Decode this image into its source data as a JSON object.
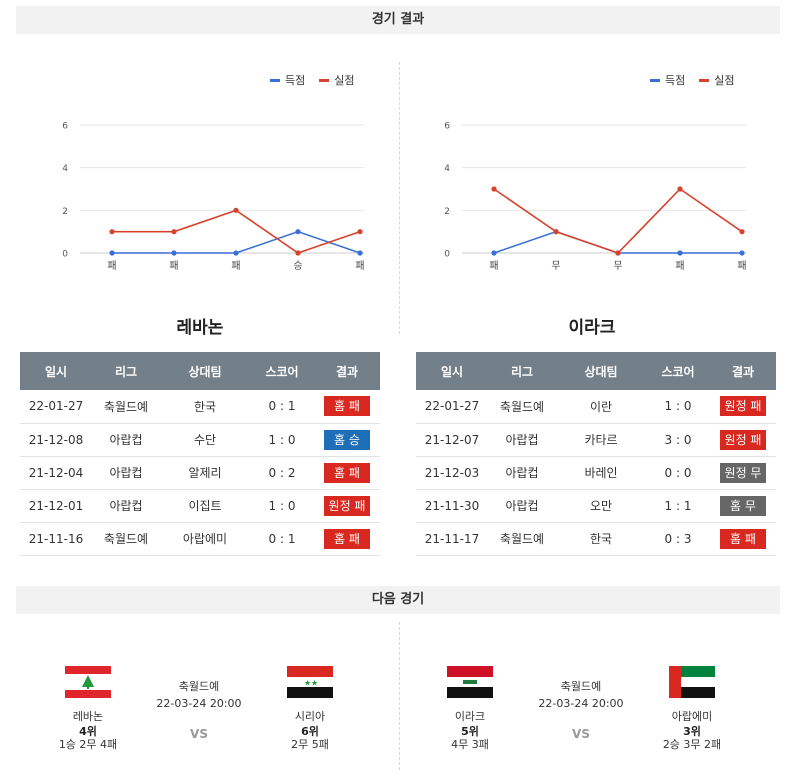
{
  "sections": {
    "results_title": "경기 결과",
    "next_title": "다음 경기"
  },
  "legend": {
    "scored": "득점",
    "conceded": "실점",
    "scored_color": "#3a6fd8",
    "conceded_color": "#d8412c"
  },
  "chart_data": [
    {
      "type": "line",
      "title": "",
      "categories": [
        "패",
        "패",
        "패",
        "승",
        "패"
      ],
      "series": [
        {
          "name": "득점",
          "values": [
            0,
            0,
            0,
            1,
            0
          ],
          "color": "#3a6fd8"
        },
        {
          "name": "실점",
          "values": [
            1,
            1,
            2,
            0,
            1
          ],
          "color": "#d8412c"
        }
      ],
      "yticks": [
        0,
        2,
        4,
        6
      ],
      "ylim": [
        0,
        6
      ],
      "grid": true,
      "legend": "top-right"
    },
    {
      "type": "line",
      "title": "",
      "categories": [
        "패",
        "무",
        "무",
        "패",
        "패"
      ],
      "series": [
        {
          "name": "득점",
          "values": [
            0,
            1,
            0,
            0,
            0
          ],
          "color": "#3a6fd8"
        },
        {
          "name": "실점",
          "values": [
            3,
            1,
            0,
            3,
            1
          ],
          "color": "#d8412c"
        }
      ],
      "yticks": [
        0,
        2,
        4,
        6
      ],
      "ylim": [
        0,
        6
      ],
      "grid": true,
      "legend": "top-right"
    }
  ],
  "teams": {
    "left": "레바논",
    "right": "이라크"
  },
  "table_headers": [
    "일시",
    "리그",
    "상대팀",
    "스코어",
    "결과"
  ],
  "badge_colors": {
    "loss": "#d9281f",
    "win": "#1f6fb8",
    "draw": "#666666"
  },
  "left_results": [
    {
      "date": "22-01-27",
      "league": "축월드예",
      "opponent": "한국",
      "score": "0 : 1",
      "result": "홈 패",
      "kind": "loss"
    },
    {
      "date": "21-12-08",
      "league": "아랍컵",
      "opponent": "수단",
      "score": "1 : 0",
      "result": "홈 승",
      "kind": "win"
    },
    {
      "date": "21-12-04",
      "league": "아랍컵",
      "opponent": "알제리",
      "score": "0 : 2",
      "result": "홈 패",
      "kind": "loss"
    },
    {
      "date": "21-12-01",
      "league": "아랍컵",
      "opponent": "이집트",
      "score": "1 : 0",
      "result": "원정 패",
      "kind": "loss"
    },
    {
      "date": "21-11-16",
      "league": "축월드예",
      "opponent": "아랍에미",
      "score": "0 : 1",
      "result": "홈 패",
      "kind": "loss"
    }
  ],
  "right_results": [
    {
      "date": "22-01-27",
      "league": "축월드예",
      "opponent": "이란",
      "score": "1 : 0",
      "result": "원정 패",
      "kind": "loss"
    },
    {
      "date": "21-12-07",
      "league": "아랍컵",
      "opponent": "카타르",
      "score": "3 : 0",
      "result": "원정 패",
      "kind": "loss"
    },
    {
      "date": "21-12-03",
      "league": "아랍컵",
      "opponent": "바레인",
      "score": "0 : 0",
      "result": "원정 무",
      "kind": "draw"
    },
    {
      "date": "21-11-30",
      "league": "아랍컵",
      "opponent": "오만",
      "score": "1 : 1",
      "result": "홈 무",
      "kind": "draw"
    },
    {
      "date": "21-11-17",
      "league": "축월드예",
      "opponent": "한국",
      "score": "0 : 3",
      "result": "홈 패",
      "kind": "loss"
    }
  ],
  "next_matches": [
    {
      "league": "축월드예",
      "datetime": "22-03-24 20:00",
      "vs": "VS",
      "home": {
        "name": "레바논",
        "rank": "4위",
        "record": "1승 2무 4패",
        "flag": "lebanon-flag"
      },
      "away": {
        "name": "시리아",
        "rank": "6위",
        "record": "2무 5패",
        "flag": "syria-flag"
      }
    },
    {
      "league": "축월드예",
      "datetime": "22-03-24 20:00",
      "vs": "VS",
      "home": {
        "name": "이라크",
        "rank": "5위",
        "record": "4무 3패",
        "flag": "iraq-flag"
      },
      "away": {
        "name": "아랍에미",
        "rank": "3위",
        "record": "2승 3무 2패",
        "flag": "uae-flag"
      }
    }
  ]
}
